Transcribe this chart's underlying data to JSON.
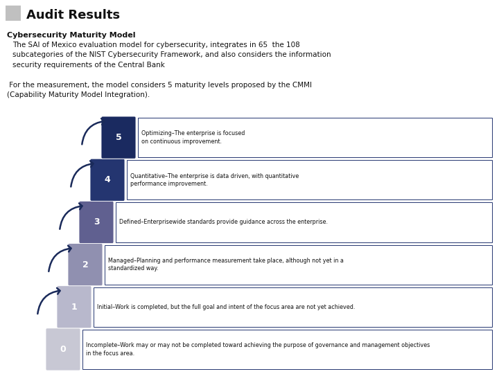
{
  "title": "Audit Results",
  "subtitle": "Cybersecurity Maturity Model",
  "para1": "The SAI of Mexico evaluation model for cybersecurity, integrates in 65  the 108\nsubcategories of the NIST Cybersecurity Framework, and also considers the information\nsecurity requirements of the Central Bank",
  "para2": " For the measurement, the model considers 5 maturity levels proposed by the CMMI\n(Capability Maturity Model Integration).",
  "levels": [
    {
      "num": "0",
      "color": "#c8c8d4",
      "text": "Incomplete–Work may or may not be completed toward achieving the purpose of governance and management objectives\nin the focus area."
    },
    {
      "num": "1",
      "color": "#b8b8cc",
      "text": "Initial–Work is completed, but the full goal and intent of the focus area are not yet achieved."
    },
    {
      "num": "2",
      "color": "#9090b0",
      "text": "Managed–Planning and performance measurement take place, although not yet in a\nstandardized way."
    },
    {
      "num": "3",
      "color": "#606090",
      "text": "Defined–Enterprisewide standards provide guidance across the enterprise."
    },
    {
      "num": "4",
      "color": "#243570",
      "text": "Quantitative–The enterprise is data driven, with quantitative\nperformance improvement."
    },
    {
      "num": "5",
      "color": "#1a2a60",
      "text": "Optimizing–The enterprise is focused\non continuous improvement."
    }
  ],
  "bg_color": "#ffffff",
  "title_box_color": "#c0c0c0",
  "arrow_color": "#1a2a5a",
  "border_color": "#243570",
  "text_color": "#111111",
  "title_fontsize": 13,
  "subtitle_fontsize": 8,
  "body_fontsize": 7.5,
  "num_fontsize": 9,
  "desc_fontsize": 5.8
}
